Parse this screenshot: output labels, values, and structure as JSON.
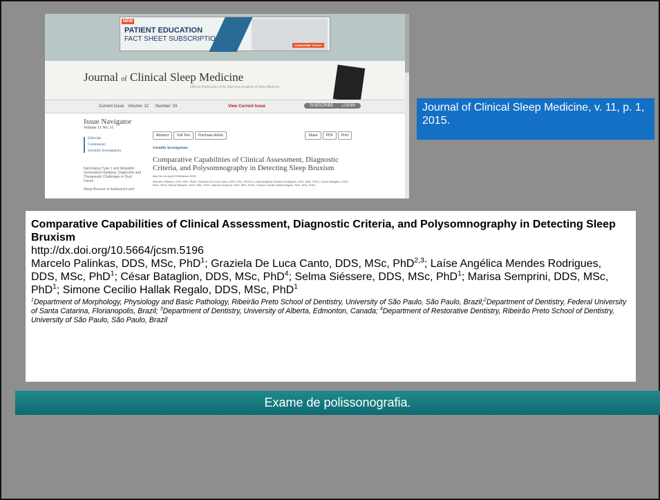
{
  "screenshot": {
    "ad": {
      "badge": "NEW",
      "line1": "PATIENT EDUCATION",
      "line2": "FACT SHEET SUBSCRIPTION",
      "button": "SUBSCRIBE TODAY!"
    },
    "journal": {
      "pre": "Journal",
      "of": "of",
      "post": "Clinical Sleep Medicine",
      "tagline": "Official Publication of the American Academy of Sleep Medicine"
    },
    "navbar": {
      "current": "Current Issue:",
      "volume": "Volume: 12",
      "number": "Number: 03",
      "view": "View Current Issue",
      "subscribe": "SUBSCRIBE",
      "login": "LOGIN"
    },
    "sidebar": {
      "title": "Issue Navigator",
      "volume": "Volume 11 No. 11",
      "items": [
        "Editorials",
        "Commentary",
        "Scientific Investigations"
      ],
      "article": "Narcolepsy Type 1 and Idiopathic Generalized Epilepsy: Diagnostic and Therapeutic Challenges in Dual Cases",
      "more": "Sleep Bruxism in Adolescent and"
    },
    "buttons_left": [
      "Abstract",
      "Full Text",
      "Purchase Article"
    ],
    "buttons_right": [
      "Share",
      "PDF",
      "Print"
    ],
    "section": "Scientific Investigations",
    "title": "Comparative Capabilities of Clinical Assessment, Diagnostic Criteria, and Polysomnography in Detecting Sleep Bruxism",
    "doi": "http://dx.doi.org/10.5664/jcsm.5196",
    "authors": "Marcelo Palinkas, DDS, MSc, PhD1; Graziela De Luca Canto, DDS, MSc, PhD2,3; Laíse Angélica Mendes Rodrigues, DDS, MSc, PhD1; César Bataglion, DDS, MSc, PhD4; Selma Siéssere, DDS, MSc, PhD1; Marisa Semprini, DDS, MSc, PhD1; Simone Cecilio Hallak Regalo, DDS, MSc, PhD1"
  },
  "citation": "Journal of Clinical Sleep Medicine, v. 11, p. 1, 2015.",
  "article": {
    "title": "Comparative Capabilities of Clinical Assessment, Diagnostic Criteria, and Polysomnography in Detecting Sleep Bruxism",
    "doi": "http://dx.doi.org/10.5664/jcsm.5196",
    "authors": [
      {
        "text": "Marcelo Palinkas, DDS, MSc, PhD",
        "sup": "1"
      },
      {
        "text": "; Graziela De Luca Canto, DDS, MSc, PhD",
        "sup": "2,3"
      },
      {
        "text": "; Laíse Angélica Mendes Rodrigues, DDS, MSc, PhD",
        "sup": "1"
      },
      {
        "text": "; César Bataglion, DDS, MSc, PhD",
        "sup": "4"
      },
      {
        "text": "; Selma Siéssere, DDS, MSc, PhD",
        "sup": "1"
      },
      {
        "text": "; Marisa Semprini, DDS, MSc, PhD",
        "sup": "1"
      },
      {
        "text": "; Simone Cecilio Hallak Regalo, DDS, MSc, PhD",
        "sup": "1"
      }
    ],
    "affiliations": [
      {
        "sup": "1",
        "text": "Department of Morphology, Physiology and Basic Pathology, Ribeirão Preto School of Dentistry, University of São Paulo, São Paulo, Brazil;"
      },
      {
        "sup": "2",
        "text": "Department of Dentistry, Federal University of Santa Catarina, Florianopolis, Brazil; "
      },
      {
        "sup": "3",
        "text": "Department of Dentistry, University of Alberta, Edmonton, Canada; "
      },
      {
        "sup": "4",
        "text": "Department of Restorative Dentistry, Ribeirão Preto School of Dentistry, University of São Paulo, São Paulo, Brazil"
      }
    ]
  },
  "banner": "Exame de polissonografia."
}
